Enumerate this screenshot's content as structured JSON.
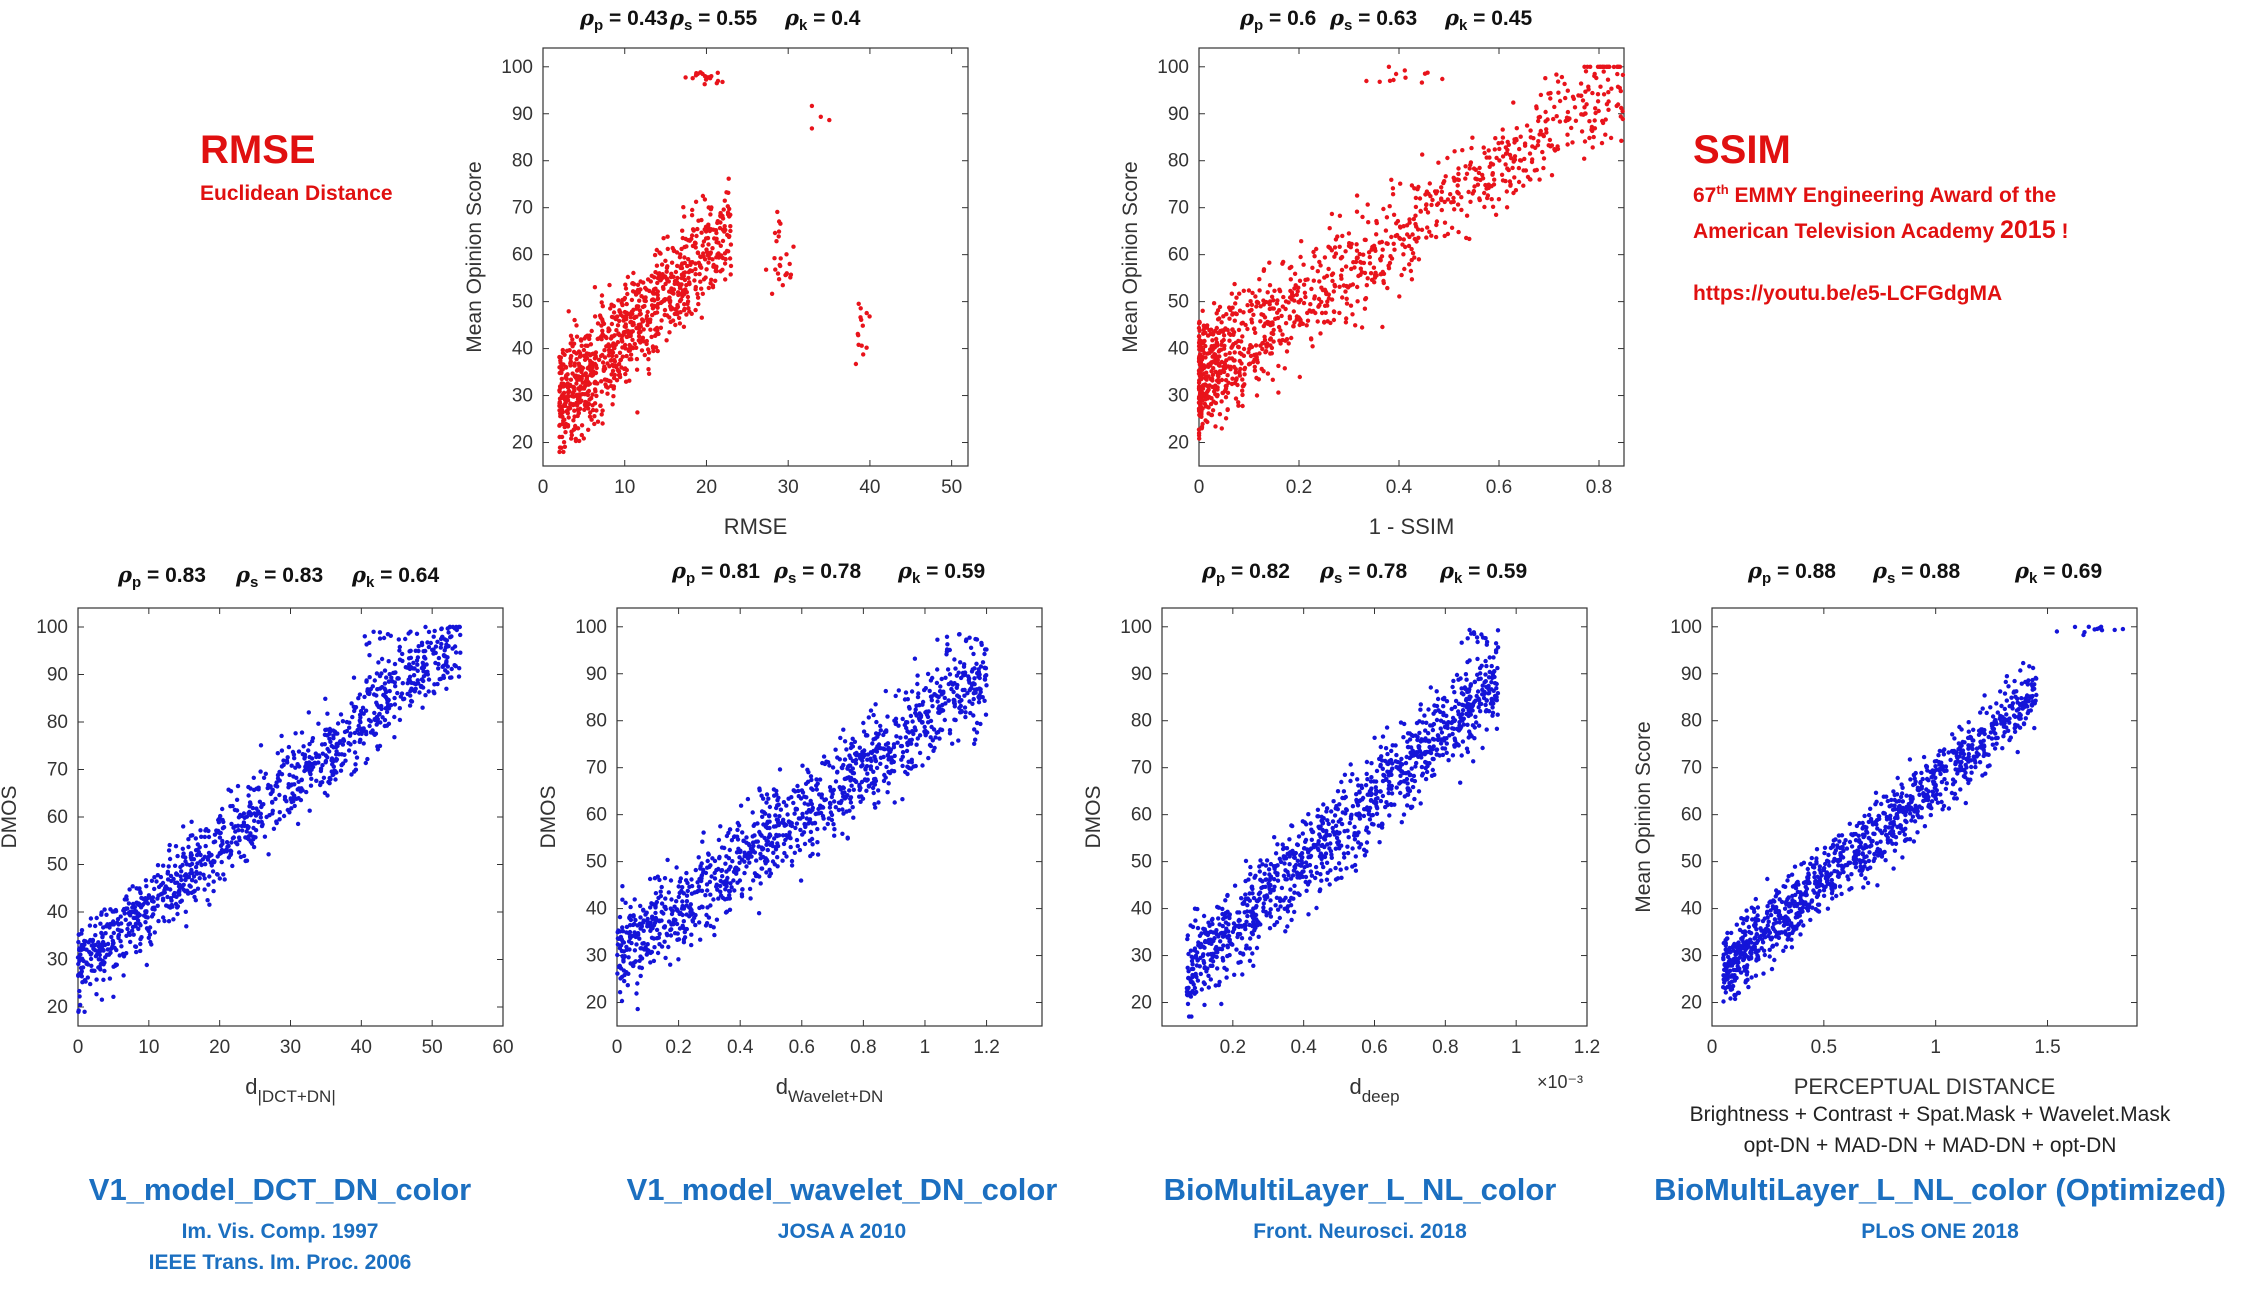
{
  "left_callout": {
    "title": "RMSE",
    "subtitle": "Euclidean Distance"
  },
  "right_callout": {
    "title": "SSIM",
    "award_line1_prefix": "67",
    "award_line1_sup": "th",
    "award_line1_rest": " EMMY Engineering Award of the",
    "award_line2": "American Television Academy",
    "award_year": "2015",
    "award_bang": " !",
    "link": "https://youtu.be/e5-LCFGdgMA"
  },
  "captions": [
    {
      "title": "V1_model_DCT_DN_color",
      "refs": [
        "Im. Vis. Comp. 1997",
        "IEEE Trans. Im. Proc. 2006"
      ]
    },
    {
      "title": "V1_model_wavelet_DN_color",
      "refs": [
        "JOSA A 2010"
      ]
    },
    {
      "title": "BioMultiLayer_L_NL_color",
      "refs": [
        "Front. Neurosci. 2018"
      ]
    },
    {
      "title": "BioMultiLayer_L_NL_color (Optimized)",
      "refs": [
        "PLoS ONE 2018"
      ]
    }
  ],
  "components_note": {
    "line1": "Brightness   +   Contrast   +   Spat.Mask  +   Wavelet.Mask",
    "line2": "opt-DN  +  MAD-DN  +  MAD-DN   +   opt-DN"
  },
  "colors": {
    "red_points": "#e8131b",
    "blue_points": "#1414d8",
    "red_text": "#e01010",
    "blue_text": "#1b6fc0"
  },
  "chart_data": [
    {
      "id": "rmse",
      "type": "scatter",
      "color": "#e8131b",
      "xlabel": "RMSE",
      "ylabel": "Mean Opinion Score",
      "xlim": [
        0,
        52
      ],
      "ylim": [
        15,
        104
      ],
      "xticks": [
        0,
        10,
        20,
        30,
        40,
        50
      ],
      "yticks": [
        20,
        30,
        40,
        50,
        60,
        70,
        80,
        90,
        100
      ],
      "xticklabels": [
        "0",
        "10",
        "20",
        "30",
        "40",
        "50"
      ],
      "correlations": {
        "pearson": "0.43",
        "spearman": "0.55",
        "kendall": "0.4"
      },
      "pattern": {
        "n": 900,
        "xmin": 2,
        "xmax": 23,
        "xskew": 1.3,
        "y0": 25,
        "slope": 1.8,
        "noise": 8,
        "ymin": 18,
        "ymax": 100,
        "extra": [
          {
            "x": 29,
            "y": 58,
            "n": 25,
            "sx": 1,
            "sy": 6
          },
          {
            "x": 39,
            "y": 42,
            "n": 14,
            "sx": 0.6,
            "sy": 5
          },
          {
            "x": 20,
            "y": 98,
            "n": 20,
            "sx": 1.5,
            "sy": 1.5
          },
          {
            "x": 34,
            "y": 89,
            "n": 4,
            "sx": 2,
            "sy": 2
          }
        ]
      }
    },
    {
      "id": "ssim",
      "type": "scatter",
      "color": "#e8131b",
      "xlabel": "1 - SSIM",
      "ylabel": "Mean Opinion Score",
      "xlim": [
        0,
        0.85
      ],
      "ylim": [
        15,
        104
      ],
      "xticks": [
        0,
        0.2,
        0.4,
        0.6,
        0.8
      ],
      "yticks": [
        20,
        30,
        40,
        50,
        60,
        70,
        80,
        90,
        100
      ],
      "xticklabels": [
        "0",
        "0.2",
        "0.4",
        "0.6",
        "0.8"
      ],
      "correlations": {
        "pearson": "0.6",
        "spearman": "0.63",
        "kendall": "0.45"
      },
      "pattern": {
        "n": 1100,
        "xmin": 0.0,
        "xmax": 0.85,
        "xskew": 1.9,
        "y0": 34,
        "slope": 75,
        "noise": 8,
        "ymin": 18,
        "ymax": 100,
        "extra": [
          {
            "x": 0.4,
            "y": 98,
            "n": 12,
            "sx": 0.05,
            "sy": 2
          }
        ]
      }
    },
    {
      "id": "dct",
      "type": "scatter",
      "color": "#1414d8",
      "xlabel": "d",
      "xlabel_sub": "|DCT+DN|",
      "ylabel": "DMOS",
      "xlim": [
        0,
        60
      ],
      "ylim": [
        16,
        104
      ],
      "xticks": [
        0,
        10,
        20,
        30,
        40,
        50,
        60
      ],
      "yticks": [
        20,
        30,
        40,
        50,
        60,
        70,
        80,
        90,
        100
      ],
      "xticklabels": [
        "0",
        "10",
        "20",
        "30",
        "40",
        "50",
        "60"
      ],
      "correlations": {
        "pearson": "0.83",
        "spearman": "0.83",
        "kendall": "0.64"
      },
      "pattern": {
        "n": 1100,
        "xmin": 0,
        "xmax": 54,
        "xskew": 1.15,
        "y0": 28,
        "slope": 1.3,
        "noise": 6,
        "ymin": 19,
        "ymax": 100,
        "extra": [
          {
            "x": 43,
            "y": 97,
            "n": 10,
            "sx": 3,
            "sy": 2
          }
        ]
      }
    },
    {
      "id": "wavelet",
      "type": "scatter",
      "color": "#1414d8",
      "xlabel": "d",
      "xlabel_sub": "Wavelet+DN",
      "ylabel": "DMOS",
      "xlim": [
        0,
        1.38
      ],
      "ylim": [
        15,
        104
      ],
      "xticks": [
        0,
        0.2,
        0.4,
        0.6,
        0.8,
        1,
        1.2
      ],
      "yticks": [
        20,
        30,
        40,
        50,
        60,
        70,
        80,
        90,
        100
      ],
      "xticklabels": [
        "0",
        "0.2",
        "0.4",
        "0.6",
        "0.8",
        "1",
        "1.2"
      ],
      "correlations": {
        "pearson": "0.81",
        "spearman": "0.78",
        "kendall": "0.59"
      },
      "pattern": {
        "n": 1150,
        "xmin": 0,
        "xmax": 1.2,
        "xskew": 1.05,
        "y0": 30,
        "slope": 50,
        "noise": 7,
        "ymin": 17,
        "ymax": 100,
        "extra": [
          {
            "x": 1.1,
            "y": 97,
            "n": 10,
            "sx": 0.05,
            "sy": 2
          }
        ]
      }
    },
    {
      "id": "deep",
      "type": "scatter",
      "color": "#1414d8",
      "xlabel": "d",
      "xlabel_sub": "deep",
      "x_multiplier": "×10⁻³",
      "ylabel": "DMOS",
      "xlim": [
        0,
        1.2
      ],
      "ylim": [
        15,
        104
      ],
      "xticks": [
        0.2,
        0.4,
        0.6,
        0.8,
        1,
        1.2
      ],
      "yticks": [
        20,
        30,
        40,
        50,
        60,
        70,
        80,
        90,
        100
      ],
      "xticklabels": [
        "0.2",
        "0.4",
        "0.6",
        "0.8",
        "1",
        "1.2"
      ],
      "correlations": {
        "pearson": "0.82",
        "spearman": "0.78",
        "kendall": "0.59"
      },
      "pattern": {
        "n": 1100,
        "xmin": 0.07,
        "xmax": 0.95,
        "xskew": 1.05,
        "y0": 22,
        "slope": 70,
        "noise": 7,
        "ymin": 17,
        "ymax": 100,
        "extra": [
          {
            "x": 0.88,
            "y": 98,
            "n": 12,
            "sx": 0.05,
            "sy": 1.5
          }
        ]
      }
    },
    {
      "id": "optimized",
      "type": "scatter",
      "color": "#1414d8",
      "xlabel": "PERCEPTUAL DISTANCE",
      "ylabel": "Mean Opinion Score",
      "xlim": [
        0,
        1.9
      ],
      "ylim": [
        15,
        104
      ],
      "xticks": [
        0,
        0.5,
        1,
        1.5
      ],
      "yticks": [
        20,
        30,
        40,
        50,
        60,
        70,
        80,
        90,
        100
      ],
      "xticklabels": [
        "0",
        "0.5",
        "1",
        "1.5"
      ],
      "correlations": {
        "pearson": "0.88",
        "spearman": "0.88",
        "kendall": "0.69"
      },
      "pattern": {
        "n": 1150,
        "xmin": 0.05,
        "xmax": 1.45,
        "xskew": 1.3,
        "y0": 25,
        "slope": 42,
        "noise": 5,
        "ymin": 18,
        "ymax": 100,
        "extra": [
          {
            "x": 1.7,
            "y": 99,
            "n": 12,
            "sx": 0.1,
            "sy": 1
          }
        ]
      }
    }
  ]
}
